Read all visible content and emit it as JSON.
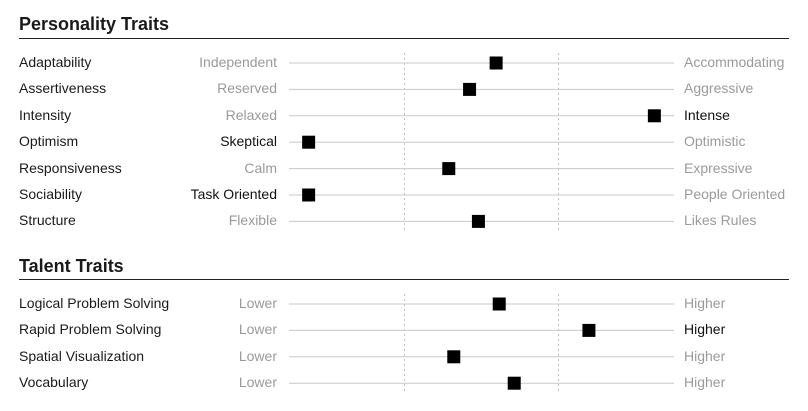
{
  "sections": [
    {
      "title": "Personality Traits",
      "rows": [
        {
          "name": "Adaptability",
          "low": "Independent",
          "high": "Accommodating",
          "value": 0.538,
          "active": "none"
        },
        {
          "name": "Assertiveness",
          "low": "Reserved",
          "high": "Aggressive",
          "value": 0.469,
          "active": "none"
        },
        {
          "name": "Intensity",
          "low": "Relaxed",
          "high": "Intense",
          "value": 0.949,
          "active": "high"
        },
        {
          "name": "Optimism",
          "low": "Skeptical",
          "high": "Optimistic",
          "value": 0.051,
          "active": "low"
        },
        {
          "name": "Responsiveness",
          "low": "Calm",
          "high": "Expressive",
          "value": 0.415,
          "active": "none"
        },
        {
          "name": "Sociability",
          "low": "Task Oriented",
          "high": "People Oriented",
          "value": 0.051,
          "active": "low"
        },
        {
          "name": "Structure",
          "low": "Flexible",
          "high": "Likes Rules",
          "value": 0.492,
          "active": "none"
        }
      ]
    },
    {
      "title": "Talent Traits",
      "rows": [
        {
          "name": "Logical Problem Solving",
          "low": "Lower",
          "high": "Higher",
          "value": 0.546,
          "active": "none"
        },
        {
          "name": "Rapid Problem Solving",
          "low": "Lower",
          "high": "Higher",
          "value": 0.779,
          "active": "high"
        },
        {
          "name": "Spatial Visualization",
          "low": "Lower",
          "high": "Higher",
          "value": 0.428,
          "active": "none"
        },
        {
          "name": "Vocabulary",
          "low": "Lower",
          "high": "Higher",
          "value": 0.585,
          "active": "none"
        }
      ]
    }
  ],
  "chart_data": {
    "type": "scatter",
    "xlim": [
      0,
      1
    ],
    "dotted_gridlines_at": [
      0.3,
      0.7
    ],
    "marker": "square",
    "colors": {
      "marker": "#000000",
      "track": "#c8c8c8",
      "gridline": "#c0c0c0",
      "muted_label": "#9a9a9a",
      "active_label": "#111111"
    },
    "series": [
      {
        "categories": [
          "Adaptability",
          "Assertiveness",
          "Intensity",
          "Optimism",
          "Responsiveness",
          "Sociability",
          "Structure"
        ],
        "values": [
          0.538,
          0.469,
          0.949,
          0.051,
          0.415,
          0.051,
          0.492
        ]
      },
      {
        "categories": [
          "Logical Problem Solving",
          "Rapid Problem Solving",
          "Spatial Visualization",
          "Vocabulary"
        ],
        "values": [
          0.546,
          0.779,
          0.428,
          0.585
        ]
      }
    ]
  }
}
